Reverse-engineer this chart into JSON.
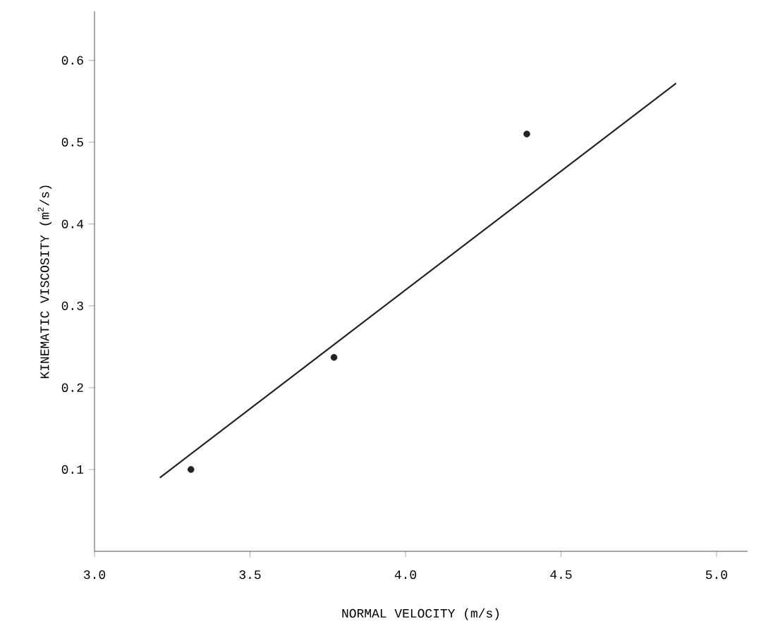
{
  "chart_data": {
    "type": "scatter",
    "xlabel": "NORMAL VELOCITY (m/s)",
    "ylabel": "KINEMATIC VISCOSITY (m$^{2}$/s)",
    "x": [
      3.31,
      3.77,
      4.39
    ],
    "series": [
      {
        "color": "#222222",
        "marker": "circle",
        "values": [
          0.1,
          0.237,
          0.51
        ]
      },
      {
        "type": "line",
        "color": "#222222",
        "marker": "none",
        "line_style": "solid",
        "x": [
          3.21,
          4.87
        ],
        "values": [
          0.09,
          0.572
        ]
      }
    ],
    "xlim": [
      3.0,
      5.1
    ],
    "ylim": [
      0,
      0.66
    ],
    "xticks": [
      {
        "value": 3.0,
        "label": "3.0"
      },
      {
        "value": 3.5,
        "label": "3.5"
      },
      {
        "value": 4.0,
        "label": "4.0"
      },
      {
        "value": 4.5,
        "label": "4.5"
      },
      {
        "value": 5.0,
        "label": "5.0"
      }
    ],
    "yticks": [
      0.1,
      0.2,
      0.3,
      0.4,
      0.5,
      0.6
    ],
    "grid": false
  }
}
